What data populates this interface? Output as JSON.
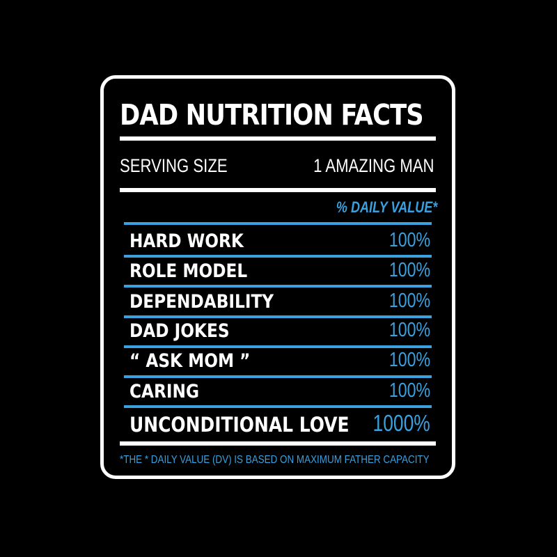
{
  "label": {
    "title": "DAD NUTRITION FACTS",
    "serving_size_label": "SERVING SIZE",
    "serving_size_value": "1 AMAZING MAN",
    "daily_value_header": "% DAILY VALUE*",
    "rows": [
      {
        "name": "HARD WORK",
        "value": "100%"
      },
      {
        "name": "ROLE MODEL",
        "value": "100%"
      },
      {
        "name": "DEPENDABILITY",
        "value": "100%"
      },
      {
        "name": "DAD JOKES",
        "value": "100%"
      },
      {
        "name": "“ ASK MOM ”",
        "value": "100%"
      },
      {
        "name": "CARING",
        "value": "100%"
      },
      {
        "name": "UNCONDITIONAL LOVE",
        "value": "1000%"
      }
    ],
    "footnote": "*THE * DAILY VALUE (DV) IS BASED ON MAXIMUM FATHER CAPACITY"
  },
  "colors": {
    "background": "#000000",
    "text": "#ffffff",
    "accent": "#3aa0de"
  }
}
